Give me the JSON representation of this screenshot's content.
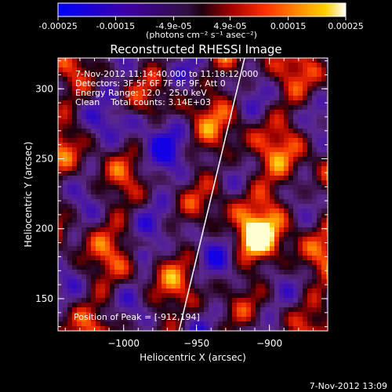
{
  "colors": {
    "background": "#000000",
    "foreground": "#ffffff",
    "limb": "#ffffff"
  },
  "colorbar": {
    "tick_labels": [
      "-0.00025",
      "-0.00015",
      "-4.9e-05",
      "4.9e-05",
      "0.00015",
      "0.00025"
    ],
    "tick_values": [
      -0.00025,
      -0.00015,
      -4.9e-05,
      4.9e-05,
      0.00015,
      0.00025
    ],
    "unit_label": "(photons cm⁻² s⁻¹ asec⁻²)",
    "range": [
      -0.00025,
      0.00025
    ]
  },
  "chart_data": {
    "type": "heatmap",
    "title": "Reconstructed RHESSI Image",
    "xlabel": "Heliocentric X (arcsec)",
    "ylabel": "Heliocentric Y (arcsec)",
    "xlim": [
      -1045,
      -860
    ],
    "ylim": [
      127,
      322
    ],
    "x_ticks": [
      -1000,
      -950,
      -900
    ],
    "x_tick_labels": [
      "−1000",
      "−950",
      "−900"
    ],
    "y_ticks": [
      150,
      200,
      250,
      300
    ],
    "y_tick_labels": [
      "150",
      "200",
      "250",
      "300"
    ],
    "info_lines": [
      "7-Nov-2012 11:14:40.000 to 11:18:12.000",
      "Detectors: 3F 5F 6F 7F 8F 9F, Att 0",
      "Energy Range: 12.0 - 25.0 keV",
      "Clean    Total counts: 3.14E+03"
    ],
    "peak_label": "Position of Peak = [-912,194]",
    "peak_position": [
      -912,
      194
    ],
    "limb_line": [
      [
        -962,
        127
      ],
      [
        -917,
        322
      ]
    ],
    "grid": false
  },
  "footer": {
    "timestamp": "7-Nov-2012 13:09"
  }
}
